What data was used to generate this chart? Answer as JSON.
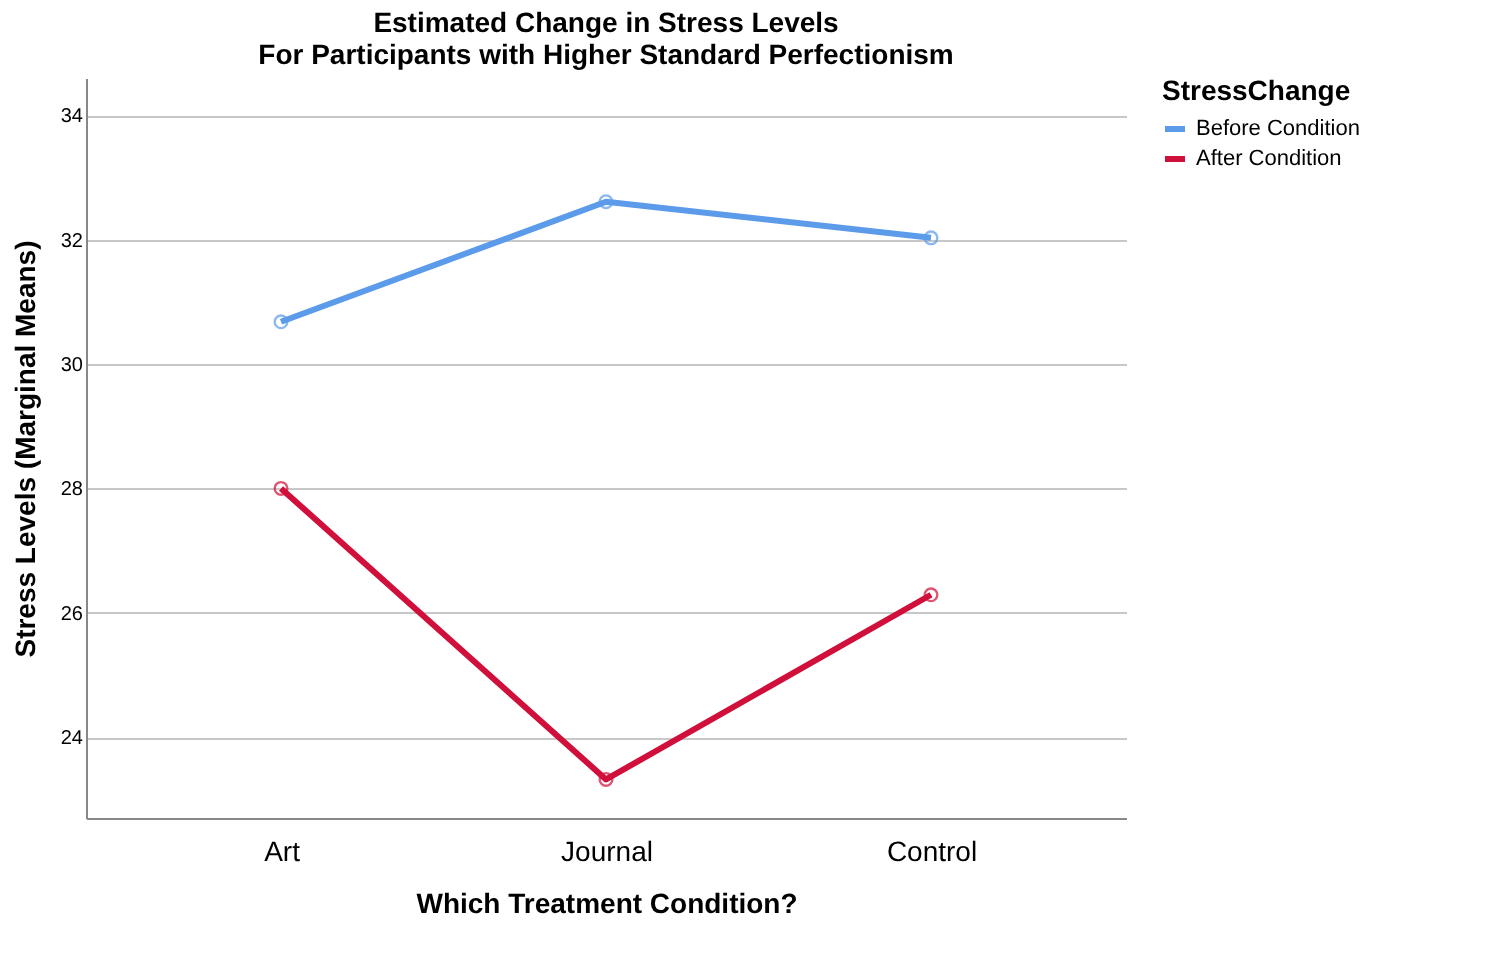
{
  "chart_data": {
    "type": "line",
    "title": [
      "Estimated Change in Stress Levels",
      "For Participants with Higher Standard Perfectionism"
    ],
    "xlabel": "Which Treatment Condition?",
    "ylabel": "Stress Levels (Marginal Means)",
    "legend_title": "StressChange",
    "categories": [
      "Art",
      "Journal",
      "Control"
    ],
    "series": [
      {
        "name": "Before Condition",
        "color": "#5b9bea",
        "values": [
          30.68,
          32.61,
          32.03
        ]
      },
      {
        "name": "After Condition",
        "color": "#d0103a",
        "values": [
          28.0,
          23.32,
          26.29
        ]
      }
    ],
    "ylim": [
      22.7,
      34.6
    ],
    "yticks": [
      24,
      26,
      28,
      30,
      32,
      34
    ],
    "grid": "y",
    "legend": "top right",
    "marker": "circle",
    "line_style": "solid"
  }
}
